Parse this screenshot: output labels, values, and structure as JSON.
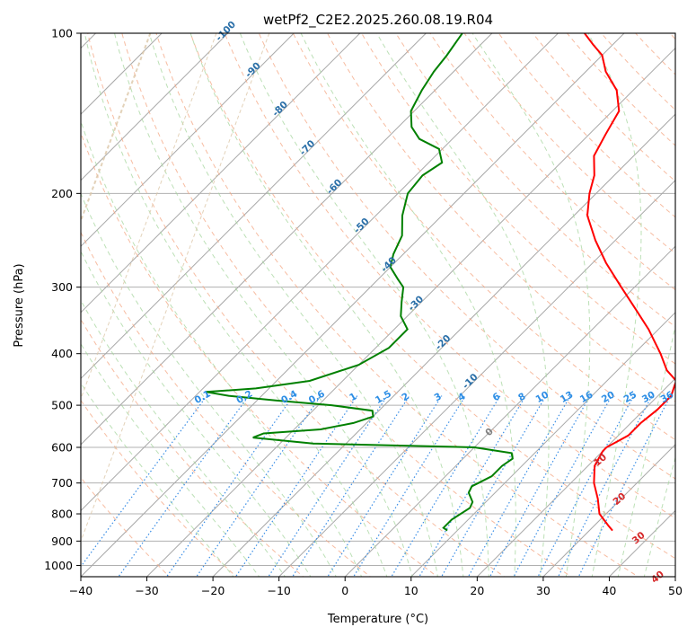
{
  "chart_data": {
    "type": "skew-t",
    "title": "wetPf2_C2E2.2025.260.08.19.R04",
    "xlabel": "Temperature (°C)",
    "ylabel": "Pressure (hPa)",
    "xlim": [
      -40,
      50
    ],
    "ylim_hpa": [
      1050,
      100
    ],
    "x_ticks": [
      "−40",
      "−30",
      "−20",
      "−10",
      "0",
      "10",
      "20",
      "30",
      "40",
      "50"
    ],
    "x_tick_values": [
      -40,
      -30,
      -20,
      -10,
      0,
      10,
      20,
      30,
      40,
      50
    ],
    "y_ticks": [
      "100",
      "200",
      "300",
      "400",
      "500",
      "600",
      "700",
      "800",
      "900",
      "1000"
    ],
    "y_tick_values": [
      100,
      200,
      300,
      400,
      500,
      600,
      700,
      800,
      900,
      1000
    ],
    "grid": true,
    "series": [
      {
        "name": "temperature",
        "color": "#ff0000",
        "points": [
          [
            860,
            33.5
          ],
          [
            840,
            32
          ],
          [
            800,
            29
          ],
          [
            750,
            26.5
          ],
          [
            700,
            23.5
          ],
          [
            650,
            21
          ],
          [
            610,
            20
          ],
          [
            600,
            20
          ],
          [
            570,
            21.5
          ],
          [
            540,
            21.5
          ],
          [
            510,
            22
          ],
          [
            480,
            22
          ],
          [
            460,
            21
          ],
          [
            450,
            20.5
          ],
          [
            430,
            17.5
          ],
          [
            400,
            14
          ],
          [
            360,
            8.5
          ],
          [
            330,
            3.5
          ],
          [
            300,
            -2
          ],
          [
            270,
            -8
          ],
          [
            245,
            -13
          ],
          [
            220,
            -18
          ],
          [
            200,
            -21
          ],
          [
            185,
            -23
          ],
          [
            170,
            -26
          ],
          [
            155,
            -27.5
          ],
          [
            140,
            -29
          ],
          [
            128,
            -32.5
          ],
          [
            118,
            -37
          ],
          [
            110,
            -40
          ],
          [
            105,
            -43
          ],
          [
            100,
            -46
          ]
        ]
      },
      {
        "name": "dewpoint",
        "color": "#008000",
        "points": [
          [
            860,
            8.5
          ],
          [
            850,
            7.5
          ],
          [
            820,
            7.5
          ],
          [
            780,
            8.5
          ],
          [
            760,
            8
          ],
          [
            730,
            6
          ],
          [
            710,
            5.5
          ],
          [
            700,
            6
          ],
          [
            680,
            7
          ],
          [
            650,
            7
          ],
          [
            630,
            7.5
          ],
          [
            615,
            6.5
          ],
          [
            600,
            0
          ],
          [
            590,
            -25
          ],
          [
            575,
            -35
          ],
          [
            565,
            -34
          ],
          [
            555,
            -26
          ],
          [
            540,
            -22
          ],
          [
            525,
            -20
          ],
          [
            512,
            -21
          ],
          [
            500,
            -28
          ],
          [
            490,
            -37
          ],
          [
            480,
            -45
          ],
          [
            472,
            -49
          ],
          [
            465,
            -42
          ],
          [
            450,
            -35
          ],
          [
            420,
            -30
          ],
          [
            390,
            -28
          ],
          [
            360,
            -28
          ],
          [
            340,
            -31
          ],
          [
            320,
            -33
          ],
          [
            300,
            -35
          ],
          [
            290,
            -37
          ],
          [
            275,
            -40
          ],
          [
            260,
            -41.5
          ],
          [
            240,
            -43
          ],
          [
            220,
            -46
          ],
          [
            200,
            -48.5
          ],
          [
            185,
            -49
          ],
          [
            175,
            -48
          ],
          [
            165,
            -50.5
          ],
          [
            158,
            -55
          ],
          [
            150,
            -58
          ],
          [
            140,
            -60.5
          ],
          [
            128,
            -62
          ],
          [
            118,
            -63
          ],
          [
            110,
            -63.5
          ],
          [
            100,
            -64.5
          ]
        ]
      }
    ],
    "mixing_ratio_labels": [
      "0.1",
      "0.2",
      "0.4",
      "0.6",
      "1",
      "1.5",
      "2",
      "3",
      "4",
      "6",
      "8",
      "10",
      "13",
      "16",
      "20",
      "25",
      "30",
      "36"
    ],
    "mixing_ratio_values": [
      0.1,
      0.2,
      0.4,
      0.6,
      1,
      1.5,
      2,
      3,
      4,
      6,
      8,
      10,
      13,
      16,
      20,
      25,
      30,
      36
    ],
    "isotherm_labels": [
      "-100",
      "-90",
      "-80",
      "-70",
      "-60",
      "-50",
      "-40",
      "-30",
      "-20",
      "-10"
    ],
    "isotherm_label_values": [
      -100,
      -90,
      -80,
      -70,
      -60,
      -50,
      -40,
      -30,
      -20,
      -10
    ],
    "isotherm_zero_label": "0",
    "moist_adiabat_labels": [
      "10",
      "20",
      "30",
      "40"
    ],
    "moist_adiabat_label_values": [
      10,
      20,
      30,
      40
    ]
  }
}
